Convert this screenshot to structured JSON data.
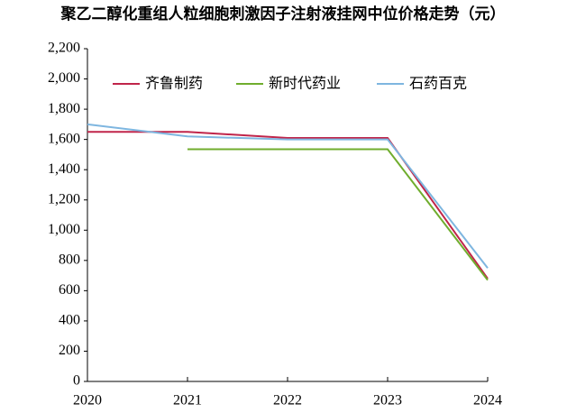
{
  "chart_data": {
    "type": "line",
    "title": "聚乙二醇化重组人粒细胞刺激因子注射液挂网中位价格走势（元）",
    "x": [
      2020,
      2021,
      2022,
      2023,
      2024
    ],
    "xlim": [
      2020,
      2024
    ],
    "xticks": [
      2020,
      2021,
      2022,
      2023,
      2024
    ],
    "ylim": [
      0,
      2200
    ],
    "yticks": [
      0,
      200,
      400,
      600,
      800,
      {
        "value": 1000,
        "label": "1,000"
      },
      {
        "value": 1200,
        "label": "1,200"
      },
      {
        "value": 1400,
        "label": "1,400"
      },
      {
        "value": 1600,
        "label": "1,600"
      },
      {
        "value": 1800,
        "label": "1,800"
      },
      {
        "value": 2000,
        "label": "2,000"
      },
      {
        "value": 2200,
        "label": "2,200"
      }
    ],
    "grid": false,
    "legend": "top",
    "series": [
      {
        "name": "齐鲁制药",
        "color": "#c0254a",
        "values": [
          1650,
          1650,
          1610,
          1610,
          680
        ]
      },
      {
        "name": "新时代药业",
        "color": "#70ad2e",
        "values": [
          null,
          1535,
          1535,
          1535,
          670
        ]
      },
      {
        "name": "石药百克",
        "color": "#7eb6e0",
        "values": [
          1700,
          1620,
          1600,
          1600,
          750
        ]
      }
    ]
  }
}
